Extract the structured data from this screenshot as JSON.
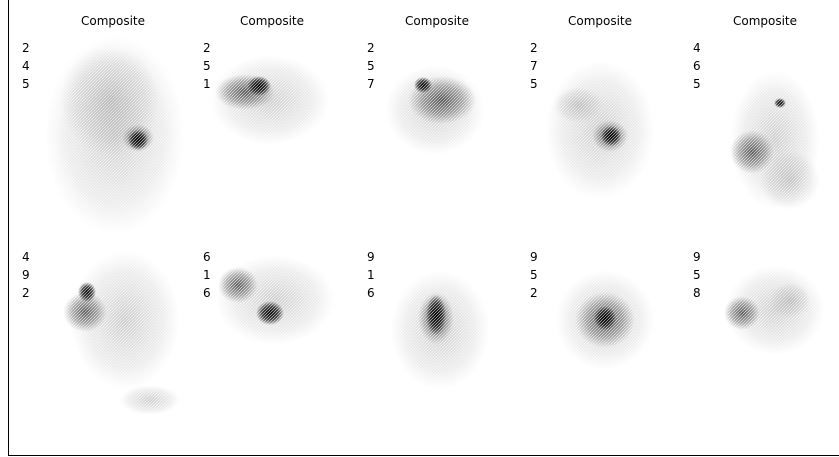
{
  "titles": [
    "Composite",
    "Composite",
    "Composite",
    "Composite",
    "Composite"
  ],
  "cells": [
    [
      "2",
      "4",
      "5"
    ],
    [
      "2",
      "5",
      "1"
    ],
    [
      "2",
      "5",
      "7"
    ],
    [
      "2",
      "7",
      "5"
    ],
    [
      "4",
      "6",
      "5"
    ],
    [
      "4",
      "9",
      "2"
    ],
    [
      "6",
      "1",
      "6"
    ],
    [
      "9",
      "1",
      "6"
    ],
    [
      "9",
      "5",
      "2"
    ],
    [
      "9",
      "5",
      "8"
    ]
  ]
}
